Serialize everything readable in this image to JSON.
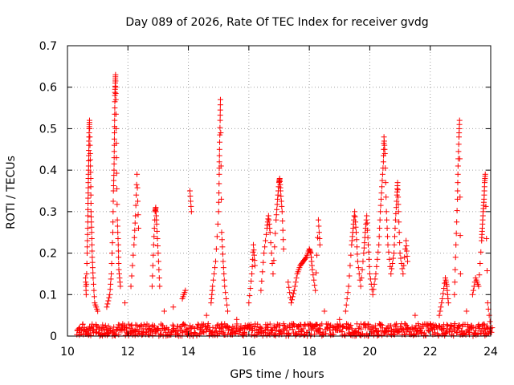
{
  "chart_data": {
    "type": "scatter",
    "title": "Day 089 of 2026, Rate Of TEC Index for receiver gvdg",
    "xlabel": "GPS time / hours",
    "ylabel": "ROTI / TECUs",
    "xlim": [
      10,
      24
    ],
    "ylim": [
      0,
      0.7
    ],
    "x_ticks": [
      "10",
      "12",
      "14",
      "16",
      "18",
      "20",
      "22",
      "24"
    ],
    "y_ticks": [
      "0",
      "0.1",
      "0.2",
      "0.3",
      "0.4",
      "0.5",
      "0.6",
      "0.7"
    ],
    "grid": true,
    "marker": "+",
    "color": "#ff0000",
    "series": [
      {
        "name": "ROTI",
        "baseline": {
          "x_start": 10.3,
          "x_end": 24.0,
          "step": 0.05,
          "y_min": 0.0,
          "y_max": 0.03
        },
        "points": [
          {
            "x": 10.6,
            "y": 0.14
          },
          {
            "x": 10.62,
            "y": 0.1
          },
          {
            "x": 10.65,
            "y": 0.2
          },
          {
            "x": 10.67,
            "y": 0.26
          },
          {
            "x": 10.68,
            "y": 0.32
          },
          {
            "x": 10.69,
            "y": 0.37
          },
          {
            "x": 10.7,
            "y": 0.41
          },
          {
            "x": 10.71,
            "y": 0.46
          },
          {
            "x": 10.72,
            "y": 0.5
          },
          {
            "x": 10.73,
            "y": 0.52
          },
          {
            "x": 10.75,
            "y": 0.44
          },
          {
            "x": 10.77,
            "y": 0.38
          },
          {
            "x": 10.78,
            "y": 0.3
          },
          {
            "x": 10.8,
            "y": 0.25
          },
          {
            "x": 10.82,
            "y": 0.19
          },
          {
            "x": 10.85,
            "y": 0.14
          },
          {
            "x": 10.9,
            "y": 0.08
          },
          {
            "x": 11.0,
            "y": 0.06
          },
          {
            "x": 11.3,
            "y": 0.07
          },
          {
            "x": 11.4,
            "y": 0.1
          },
          {
            "x": 11.45,
            "y": 0.15
          },
          {
            "x": 11.5,
            "y": 0.25
          },
          {
            "x": 11.52,
            "y": 0.35
          },
          {
            "x": 11.54,
            "y": 0.4
          },
          {
            "x": 11.55,
            "y": 0.46
          },
          {
            "x": 11.56,
            "y": 0.52
          },
          {
            "x": 11.57,
            "y": 0.58
          },
          {
            "x": 11.58,
            "y": 0.61
          },
          {
            "x": 11.59,
            "y": 0.63
          },
          {
            "x": 11.6,
            "y": 0.57
          },
          {
            "x": 11.62,
            "y": 0.43
          },
          {
            "x": 11.65,
            "y": 0.28
          },
          {
            "x": 11.68,
            "y": 0.22
          },
          {
            "x": 11.7,
            "y": 0.16
          },
          {
            "x": 11.75,
            "y": 0.12
          },
          {
            "x": 11.9,
            "y": 0.08
          },
          {
            "x": 12.1,
            "y": 0.12
          },
          {
            "x": 12.2,
            "y": 0.22
          },
          {
            "x": 12.25,
            "y": 0.29
          },
          {
            "x": 12.3,
            "y": 0.39
          },
          {
            "x": 12.35,
            "y": 0.26
          },
          {
            "x": 12.8,
            "y": 0.12
          },
          {
            "x": 12.85,
            "y": 0.22
          },
          {
            "x": 12.9,
            "y": 0.3
          },
          {
            "x": 12.92,
            "y": 0.31
          },
          {
            "x": 12.95,
            "y": 0.27
          },
          {
            "x": 13.0,
            "y": 0.2
          },
          {
            "x": 13.05,
            "y": 0.12
          },
          {
            "x": 13.2,
            "y": 0.06
          },
          {
            "x": 13.5,
            "y": 0.07
          },
          {
            "x": 13.8,
            "y": 0.09
          },
          {
            "x": 13.9,
            "y": 0.11
          },
          {
            "x": 14.05,
            "y": 0.35
          },
          {
            "x": 14.1,
            "y": 0.3
          },
          {
            "x": 14.6,
            "y": 0.05
          },
          {
            "x": 14.75,
            "y": 0.08
          },
          {
            "x": 14.8,
            "y": 0.12
          },
          {
            "x": 14.9,
            "y": 0.18
          },
          {
            "x": 15.0,
            "y": 0.3
          },
          {
            "x": 15.02,
            "y": 0.39
          },
          {
            "x": 15.03,
            "y": 0.45
          },
          {
            "x": 15.05,
            "y": 0.52
          },
          {
            "x": 15.06,
            "y": 0.57
          },
          {
            "x": 15.1,
            "y": 0.25
          },
          {
            "x": 15.15,
            "y": 0.18
          },
          {
            "x": 15.2,
            "y": 0.12
          },
          {
            "x": 15.3,
            "y": 0.06
          },
          {
            "x": 15.6,
            "y": 0.04
          },
          {
            "x": 16.0,
            "y": 0.08
          },
          {
            "x": 16.1,
            "y": 0.15
          },
          {
            "x": 16.15,
            "y": 0.22
          },
          {
            "x": 16.2,
            "y": 0.17
          },
          {
            "x": 16.4,
            "y": 0.11
          },
          {
            "x": 16.5,
            "y": 0.2
          },
          {
            "x": 16.6,
            "y": 0.26
          },
          {
            "x": 16.65,
            "y": 0.29
          },
          {
            "x": 16.7,
            "y": 0.25
          },
          {
            "x": 16.8,
            "y": 0.15
          },
          {
            "x": 16.9,
            "y": 0.28
          },
          {
            "x": 16.95,
            "y": 0.33
          },
          {
            "x": 17.0,
            "y": 0.37
          },
          {
            "x": 17.02,
            "y": 0.38
          },
          {
            "x": 17.05,
            "y": 0.35
          },
          {
            "x": 17.1,
            "y": 0.3
          },
          {
            "x": 17.15,
            "y": 0.21
          },
          {
            "x": 17.3,
            "y": 0.13
          },
          {
            "x": 17.4,
            "y": 0.08
          },
          {
            "x": 17.5,
            "y": 0.11
          },
          {
            "x": 17.6,
            "y": 0.15
          },
          {
            "x": 17.7,
            "y": 0.17
          },
          {
            "x": 17.8,
            "y": 0.18
          },
          {
            "x": 17.9,
            "y": 0.19
          },
          {
            "x": 18.0,
            "y": 0.21
          },
          {
            "x": 18.05,
            "y": 0.2
          },
          {
            "x": 18.1,
            "y": 0.16
          },
          {
            "x": 18.2,
            "y": 0.11
          },
          {
            "x": 18.3,
            "y": 0.28
          },
          {
            "x": 18.35,
            "y": 0.22
          },
          {
            "x": 18.5,
            "y": 0.06
          },
          {
            "x": 19.0,
            "y": 0.04
          },
          {
            "x": 19.2,
            "y": 0.06
          },
          {
            "x": 19.3,
            "y": 0.12
          },
          {
            "x": 19.4,
            "y": 0.22
          },
          {
            "x": 19.45,
            "y": 0.26
          },
          {
            "x": 19.5,
            "y": 0.3
          },
          {
            "x": 19.55,
            "y": 0.25
          },
          {
            "x": 19.6,
            "y": 0.18
          },
          {
            "x": 19.7,
            "y": 0.12
          },
          {
            "x": 19.8,
            "y": 0.2
          },
          {
            "x": 19.85,
            "y": 0.25
          },
          {
            "x": 19.9,
            "y": 0.29
          },
          {
            "x": 19.95,
            "y": 0.22
          },
          {
            "x": 20.0,
            "y": 0.15
          },
          {
            "x": 20.1,
            "y": 0.1
          },
          {
            "x": 20.2,
            "y": 0.15
          },
          {
            "x": 20.3,
            "y": 0.22
          },
          {
            "x": 20.35,
            "y": 0.3
          },
          {
            "x": 20.4,
            "y": 0.36
          },
          {
            "x": 20.45,
            "y": 0.42
          },
          {
            "x": 20.47,
            "y": 0.48
          },
          {
            "x": 20.5,
            "y": 0.44
          },
          {
            "x": 20.55,
            "y": 0.3
          },
          {
            "x": 20.6,
            "y": 0.22
          },
          {
            "x": 20.7,
            "y": 0.15
          },
          {
            "x": 20.8,
            "y": 0.2
          },
          {
            "x": 20.85,
            "y": 0.28
          },
          {
            "x": 20.9,
            "y": 0.34
          },
          {
            "x": 20.92,
            "y": 0.37
          },
          {
            "x": 20.95,
            "y": 0.3
          },
          {
            "x": 21.0,
            "y": 0.2
          },
          {
            "x": 21.1,
            "y": 0.15
          },
          {
            "x": 21.2,
            "y": 0.23
          },
          {
            "x": 21.25,
            "y": 0.18
          },
          {
            "x": 21.5,
            "y": 0.05
          },
          {
            "x": 22.0,
            "y": 0.03
          },
          {
            "x": 22.3,
            "y": 0.05
          },
          {
            "x": 22.4,
            "y": 0.09
          },
          {
            "x": 22.5,
            "y": 0.14
          },
          {
            "x": 22.55,
            "y": 0.12
          },
          {
            "x": 22.6,
            "y": 0.08
          },
          {
            "x": 22.8,
            "y": 0.1
          },
          {
            "x": 22.85,
            "y": 0.22
          },
          {
            "x": 22.9,
            "y": 0.33
          },
          {
            "x": 22.92,
            "y": 0.41
          },
          {
            "x": 22.95,
            "y": 0.48
          },
          {
            "x": 22.97,
            "y": 0.52
          },
          {
            "x": 23.0,
            "y": 0.15
          },
          {
            "x": 23.2,
            "y": 0.06
          },
          {
            "x": 23.4,
            "y": 0.1
          },
          {
            "x": 23.5,
            "y": 0.14
          },
          {
            "x": 23.6,
            "y": 0.12
          },
          {
            "x": 23.7,
            "y": 0.23
          },
          {
            "x": 23.72,
            "y": 0.26
          },
          {
            "x": 23.75,
            "y": 0.3
          },
          {
            "x": 23.78,
            "y": 0.33
          },
          {
            "x": 23.8,
            "y": 0.37
          },
          {
            "x": 23.82,
            "y": 0.39
          },
          {
            "x": 23.9,
            "y": 0.08
          },
          {
            "x": 24.0,
            "y": 0.02
          }
        ]
      }
    ]
  }
}
